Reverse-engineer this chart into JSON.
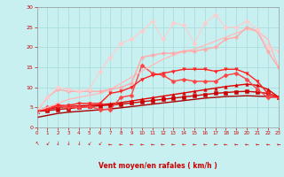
{
  "xlabel": "Vent moyen/en rafales ( km/h )",
  "bg_color": "#c8f0f0",
  "grid_color": "#aadddd",
  "xlim": [
    0,
    23
  ],
  "ylim": [
    0,
    30
  ],
  "xticks": [
    0,
    1,
    2,
    3,
    4,
    5,
    6,
    7,
    8,
    9,
    10,
    11,
    12,
    13,
    14,
    15,
    16,
    17,
    18,
    19,
    20,
    21,
    22,
    23
  ],
  "yticks": [
    0,
    5,
    10,
    15,
    20,
    25,
    30
  ],
  "series": [
    {
      "comment": "dark red smooth rising line (lowest, near bottom)",
      "x": [
        0,
        1,
        2,
        3,
        4,
        5,
        6,
        7,
        8,
        9,
        10,
        11,
        12,
        13,
        14,
        15,
        16,
        17,
        18,
        19,
        20,
        21,
        22,
        23
      ],
      "y": [
        2.5,
        3.0,
        3.5,
        3.8,
        4.0,
        4.2,
        4.4,
        4.6,
        4.9,
        5.2,
        5.5,
        5.8,
        6.1,
        6.4,
        6.7,
        7.0,
        7.3,
        7.5,
        7.7,
        7.8,
        7.9,
        7.8,
        7.7,
        7.6
      ],
      "color": "#aa0000",
      "marker": null,
      "markersize": 0,
      "linewidth": 1.0,
      "linestyle": "-"
    },
    {
      "comment": "dark red with small square markers - slowly rising then flat",
      "x": [
        0,
        1,
        2,
        3,
        4,
        5,
        6,
        7,
        8,
        9,
        10,
        11,
        12,
        13,
        14,
        15,
        16,
        17,
        18,
        19,
        20,
        21,
        22,
        23
      ],
      "y": [
        4.0,
        4.2,
        4.5,
        4.7,
        5.0,
        5.2,
        5.4,
        5.6,
        5.8,
        6.1,
        6.4,
        6.7,
        7.0,
        7.3,
        7.6,
        7.9,
        8.2,
        8.5,
        8.7,
        8.9,
        9.0,
        8.8,
        8.5,
        7.6
      ],
      "color": "#cc0000",
      "marker": "s",
      "markersize": 2.5,
      "linewidth": 1.0,
      "linestyle": "-"
    },
    {
      "comment": "medium red with triangle-up markers - slightly above prev",
      "x": [
        0,
        1,
        2,
        3,
        4,
        5,
        6,
        7,
        8,
        9,
        10,
        11,
        12,
        13,
        14,
        15,
        16,
        17,
        18,
        19,
        20,
        21,
        22,
        23
      ],
      "y": [
        4.0,
        4.5,
        5.0,
        5.2,
        5.4,
        5.5,
        5.7,
        5.9,
        6.2,
        6.6,
        7.0,
        7.4,
        7.8,
        8.2,
        8.6,
        9.0,
        9.4,
        9.8,
        10.2,
        10.5,
        10.8,
        10.5,
        9.5,
        7.6
      ],
      "color": "#dd0000",
      "marker": "^",
      "markersize": 2.5,
      "linewidth": 1.0,
      "linestyle": "-"
    },
    {
      "comment": "bright red with diamond markers - peaks around x=10 at 15, then drops to ~11-13",
      "x": [
        0,
        1,
        2,
        3,
        4,
        5,
        6,
        7,
        8,
        9,
        10,
        11,
        12,
        13,
        14,
        15,
        16,
        17,
        18,
        19,
        20,
        21,
        22,
        23
      ],
      "y": [
        4.0,
        5.0,
        5.5,
        5.0,
        5.0,
        5.2,
        4.5,
        4.5,
        7.5,
        8.0,
        15.5,
        13.5,
        13.0,
        11.5,
        12.0,
        11.5,
        11.5,
        11.5,
        13.0,
        13.5,
        12.0,
        9.5,
        7.5,
        7.5
      ],
      "color": "#ff4444",
      "marker": "D",
      "markersize": 2.5,
      "linewidth": 1.0,
      "linestyle": "-"
    },
    {
      "comment": "light pink smooth rising - reaches ~15 at end, gradual",
      "x": [
        0,
        1,
        2,
        3,
        4,
        5,
        6,
        7,
        8,
        9,
        10,
        11,
        12,
        13,
        14,
        15,
        16,
        17,
        18,
        19,
        20,
        21,
        22,
        23
      ],
      "y": [
        4.0,
        5.0,
        6.0,
        7.0,
        7.5,
        8.0,
        8.5,
        9.5,
        11.0,
        12.5,
        14.0,
        15.5,
        17.0,
        18.0,
        19.0,
        19.5,
        20.5,
        21.5,
        22.5,
        23.5,
        24.5,
        24.0,
        22.0,
        15.0
      ],
      "color": "#ffbbbb",
      "marker": null,
      "markersize": 0,
      "linewidth": 1.0,
      "linestyle": "-"
    },
    {
      "comment": "medium pink with circle markers - rises then plateau at ~18-22, ends ~15",
      "x": [
        0,
        1,
        2,
        3,
        4,
        5,
        6,
        7,
        8,
        9,
        10,
        11,
        12,
        13,
        14,
        15,
        16,
        17,
        18,
        19,
        20,
        21,
        22,
        23
      ],
      "y": [
        4.0,
        7.5,
        9.5,
        9.0,
        9.0,
        9.0,
        9.0,
        9.5,
        10.0,
        11.0,
        17.5,
        18.0,
        18.5,
        18.5,
        19.0,
        19.0,
        19.5,
        20.0,
        22.0,
        22.5,
        25.0,
        24.0,
        19.0,
        15.0
      ],
      "color": "#ffaaaa",
      "marker": "o",
      "markersize": 2.5,
      "linewidth": 1.0,
      "linestyle": "-"
    },
    {
      "comment": "light salmon zigzag - spikes to ~27 at x=11, peaks at x=20 at ~27",
      "x": [
        0,
        1,
        2,
        3,
        4,
        5,
        6,
        7,
        8,
        9,
        10,
        11,
        12,
        13,
        14,
        15,
        16,
        17,
        18,
        19,
        20,
        21,
        22,
        23
      ],
      "y": [
        4.0,
        7.5,
        10.0,
        9.5,
        9.0,
        9.5,
        14.0,
        17.5,
        21.0,
        22.0,
        24.0,
        26.5,
        22.0,
        26.0,
        25.5,
        21.0,
        26.0,
        28.0,
        25.0,
        25.0,
        26.5,
        24.5,
        20.0,
        19.0
      ],
      "color": "#ffcccc",
      "marker": "D",
      "markersize": 2.5,
      "linewidth": 0.8,
      "linestyle": "-"
    },
    {
      "comment": "triangle-down markers red - peaks at x=7 around 14-15, drops then rises to 14",
      "x": [
        0,
        1,
        2,
        3,
        4,
        5,
        6,
        7,
        8,
        9,
        10,
        11,
        12,
        13,
        14,
        15,
        16,
        17,
        18,
        19,
        20,
        21,
        22,
        23
      ],
      "y": [
        4.0,
        4.5,
        5.5,
        5.5,
        6.0,
        6.0,
        6.0,
        8.5,
        9.0,
        10.0,
        12.0,
        13.0,
        13.5,
        14.0,
        14.5,
        14.5,
        14.5,
        14.0,
        14.5,
        14.5,
        13.5,
        11.5,
        8.5,
        7.5
      ],
      "color": "#ff2222",
      "marker": "v",
      "markersize": 2.5,
      "linewidth": 1.0,
      "linestyle": "-"
    }
  ],
  "arrow_chars": [
    "↖",
    "↙",
    "↓",
    "↓",
    "↓",
    "↙",
    "↙",
    "←",
    "←",
    "←",
    "←",
    "←",
    "←",
    "←",
    "←",
    "←",
    "←",
    "←",
    "←",
    "←",
    "←",
    "←",
    "←",
    "←"
  ],
  "arrow_color": "#cc0000"
}
